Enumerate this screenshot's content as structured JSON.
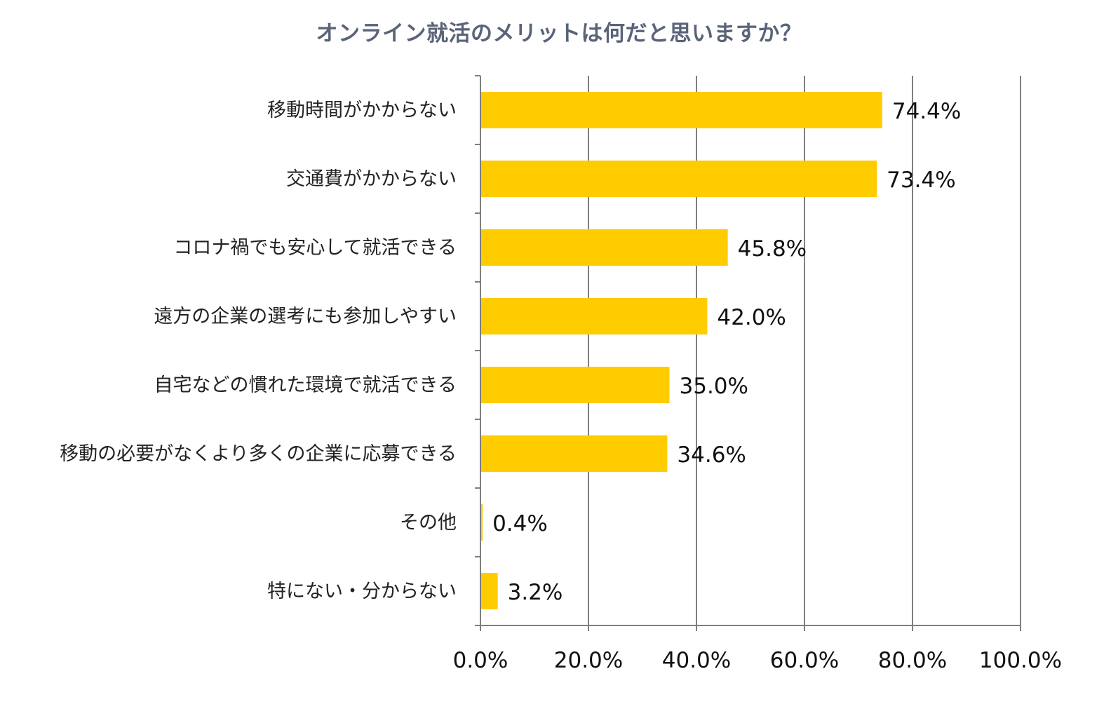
{
  "chart_data": {
    "type": "bar",
    "orientation": "horizontal",
    "title": "オンライン就活のメリットは何だと思いますか？",
    "categories": [
      "移動時間がかからない",
      "交通費がかからない",
      "コロナ禍でも安心して就活できる",
      "遠方の企業の選考にも参加しやすい",
      "自宅などの慣れた環境で就活できる",
      "移動の必要がなくより多くの企業に応募できる",
      "その他",
      "特にない・分からない"
    ],
    "values": [
      74.4,
      73.4,
      45.8,
      42.0,
      35.0,
      34.6,
      0.4,
      3.2
    ],
    "value_labels": [
      "74.4%",
      "73.4%",
      "45.8%",
      "42.0%",
      "35.0%",
      "34.6%",
      "0.4%",
      "3.2%"
    ],
    "xlim": [
      0,
      100
    ],
    "x_ticks": [
      0,
      20,
      40,
      60,
      80,
      100
    ],
    "x_tick_labels": [
      "0.0%",
      "20.0%",
      "40.0%",
      "60.0%",
      "80.0%",
      "100.0%"
    ],
    "xlabel": "",
    "ylabel": "",
    "grid": "vertical",
    "legend": "none",
    "bar_color": "#ffcc00",
    "grid_color": "#7f7f7f",
    "title_color": "#5a6478"
  }
}
